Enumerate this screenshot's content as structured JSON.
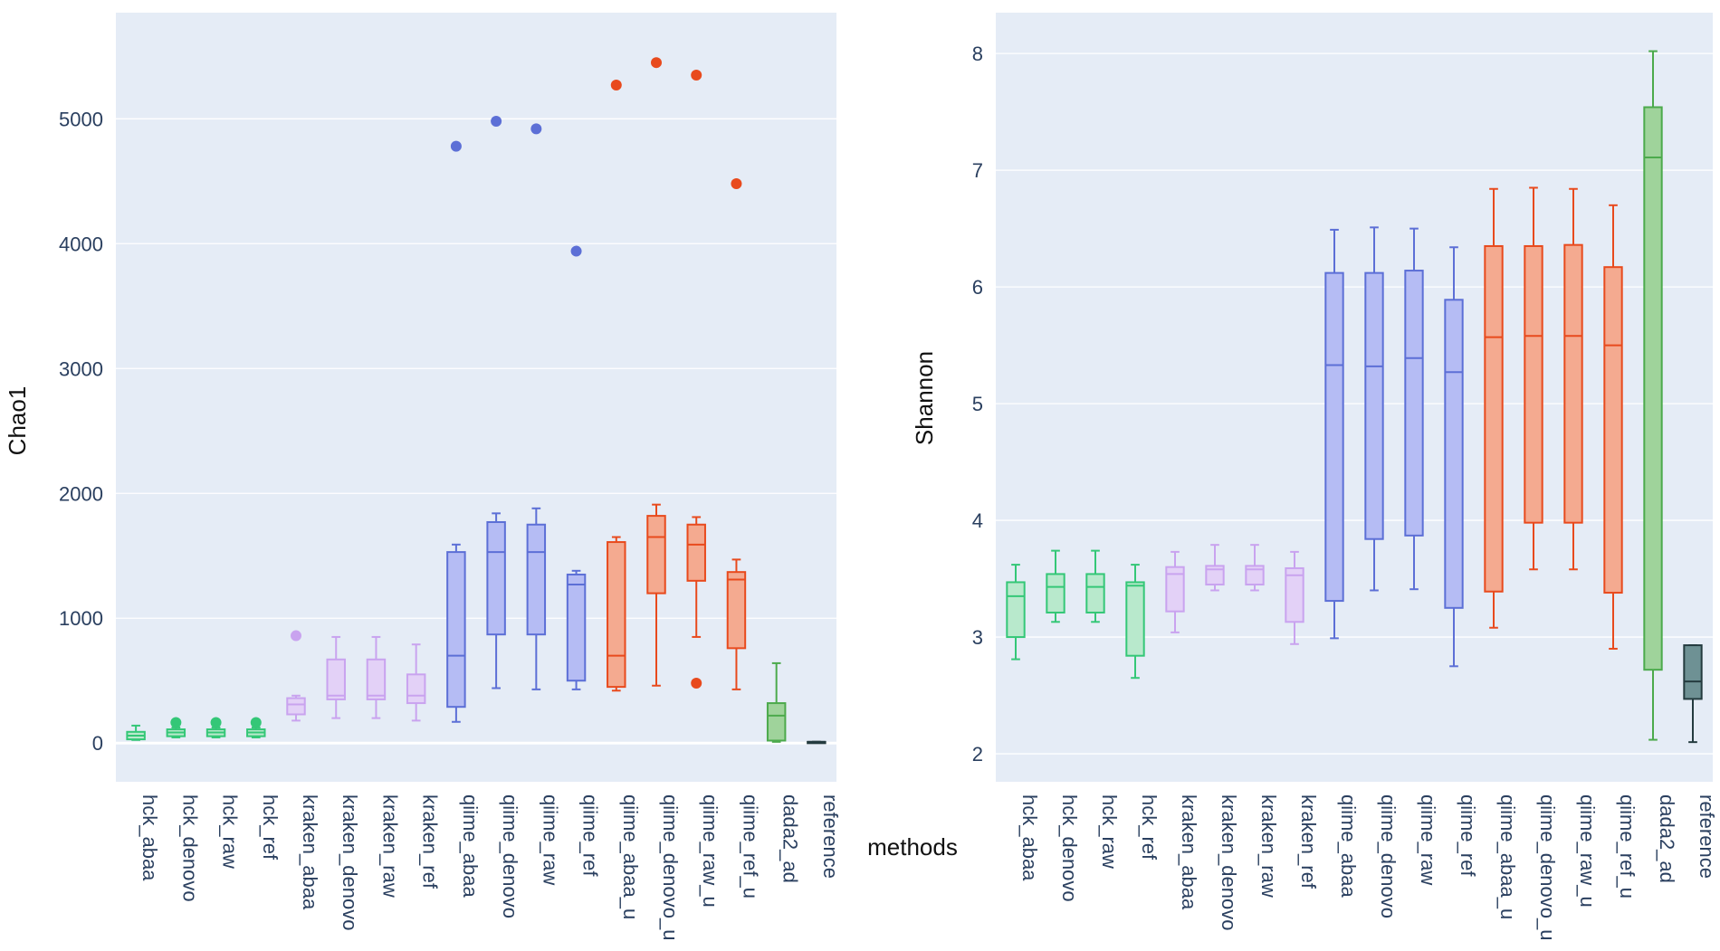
{
  "chart_data": [
    {
      "type": "box",
      "ylabel": "Chao1",
      "ylim": [
        -310,
        5850
      ],
      "yticks": [
        0,
        1000,
        2000,
        3000,
        4000,
        5000
      ],
      "categories": [
        "hck_abaa",
        "hck_denovo",
        "hck_raw",
        "hck_ref",
        "kraken_abaa",
        "kraken_denovo",
        "kraken_raw",
        "kraken_ref",
        "qiime_abaa",
        "qiime_denovo",
        "qiime_raw",
        "qiime_ref",
        "qiime_abaa_u",
        "qiime_denovo_u",
        "qiime_raw_u",
        "qiime_ref_u",
        "dada2_ad",
        "reference"
      ],
      "series": [
        {
          "name": "hck_abaa",
          "group": "hck",
          "min": 25,
          "q1": 30,
          "median": 60,
          "q3": 90,
          "max": 140,
          "outliers": []
        },
        {
          "name": "hck_denovo",
          "group": "hck",
          "min": 45,
          "q1": 55,
          "median": 85,
          "q3": 110,
          "max": 125,
          "outliers": [
            165
          ]
        },
        {
          "name": "hck_raw",
          "group": "hck",
          "min": 45,
          "q1": 55,
          "median": 85,
          "q3": 110,
          "max": 125,
          "outliers": [
            165
          ]
        },
        {
          "name": "hck_ref",
          "group": "hck",
          "min": 45,
          "q1": 55,
          "median": 85,
          "q3": 110,
          "max": 125,
          "outliers": [
            165
          ]
        },
        {
          "name": "kraken_abaa",
          "group": "kraken",
          "min": 180,
          "q1": 230,
          "median": 310,
          "q3": 360,
          "max": 380,
          "outliers": [
            860
          ]
        },
        {
          "name": "kraken_denovo",
          "group": "kraken",
          "min": 200,
          "q1": 350,
          "median": 380,
          "q3": 670,
          "max": 850,
          "outliers": []
        },
        {
          "name": "kraken_raw",
          "group": "kraken",
          "min": 200,
          "q1": 350,
          "median": 380,
          "q3": 670,
          "max": 850,
          "outliers": []
        },
        {
          "name": "kraken_ref",
          "group": "kraken",
          "min": 180,
          "q1": 320,
          "median": 380,
          "q3": 550,
          "max": 790,
          "outliers": []
        },
        {
          "name": "qiime_abaa",
          "group": "qiime",
          "min": 170,
          "q1": 290,
          "median": 700,
          "q3": 1530,
          "max": 1590,
          "outliers": [
            4780
          ]
        },
        {
          "name": "qiime_denovo",
          "group": "qiime",
          "min": 440,
          "q1": 870,
          "median": 1530,
          "q3": 1770,
          "max": 1840,
          "outliers": [
            4980
          ]
        },
        {
          "name": "qiime_raw",
          "group": "qiime",
          "min": 430,
          "q1": 870,
          "median": 1530,
          "q3": 1750,
          "max": 1880,
          "outliers": [
            4920
          ]
        },
        {
          "name": "qiime_ref",
          "group": "qiime",
          "min": 430,
          "q1": 500,
          "median": 1270,
          "q3": 1350,
          "max": 1380,
          "outliers": [
            3940
          ]
        },
        {
          "name": "qiime_abaa_u",
          "group": "qiime_u",
          "min": 420,
          "q1": 450,
          "median": 700,
          "q3": 1610,
          "max": 1650,
          "outliers": [
            5270
          ]
        },
        {
          "name": "qiime_denovo_u",
          "group": "qiime_u",
          "min": 460,
          "q1": 1200,
          "median": 1650,
          "q3": 1820,
          "max": 1910,
          "outliers": [
            5450
          ]
        },
        {
          "name": "qiime_raw_u",
          "group": "qiime_u",
          "min": 850,
          "q1": 1300,
          "median": 1590,
          "q3": 1750,
          "max": 1810,
          "outliers": [
            480,
            5350
          ]
        },
        {
          "name": "qiime_ref_u",
          "group": "qiime_u",
          "min": 430,
          "q1": 760,
          "median": 1310,
          "q3": 1370,
          "max": 1470,
          "outliers": [
            4480
          ]
        },
        {
          "name": "dada2_ad",
          "group": "dada2",
          "min": 10,
          "q1": 20,
          "median": 220,
          "q3": 320,
          "max": 640,
          "outliers": []
        },
        {
          "name": "reference",
          "group": "reference",
          "min": 10,
          "q1": 10,
          "median": 10,
          "q3": 10,
          "max": 10,
          "outliers": []
        }
      ]
    },
    {
      "type": "box",
      "ylabel": "Shannon",
      "ylim": [
        1.76,
        8.35
      ],
      "yticks": [
        2,
        3,
        4,
        5,
        6,
        7,
        8
      ],
      "categories": [
        "hck_abaa",
        "hck_denovo",
        "hck_raw",
        "hck_ref",
        "kraken_abaa",
        "kraken_denovo",
        "kraken_raw",
        "kraken_ref",
        "qiime_abaa",
        "qiime_denovo",
        "qiime_raw",
        "qiime_ref",
        "qiime_abaa_u",
        "qiime_denovo_u",
        "qiime_raw_u",
        "qiime_ref_u",
        "dada2_ad",
        "reference"
      ],
      "series": [
        {
          "name": "hck_abaa",
          "group": "hck",
          "min": 2.81,
          "q1": 3.0,
          "median": 3.35,
          "q3": 3.47,
          "max": 3.62,
          "outliers": []
        },
        {
          "name": "hck_denovo",
          "group": "hck",
          "min": 3.13,
          "q1": 3.21,
          "median": 3.43,
          "q3": 3.54,
          "max": 3.74,
          "outliers": []
        },
        {
          "name": "hck_raw",
          "group": "hck",
          "min": 3.13,
          "q1": 3.21,
          "median": 3.43,
          "q3": 3.54,
          "max": 3.74,
          "outliers": []
        },
        {
          "name": "hck_ref",
          "group": "hck",
          "min": 2.65,
          "q1": 2.84,
          "median": 3.44,
          "q3": 3.47,
          "max": 3.62,
          "outliers": []
        },
        {
          "name": "kraken_abaa",
          "group": "kraken",
          "min": 3.04,
          "q1": 3.22,
          "median": 3.54,
          "q3": 3.6,
          "max": 3.73,
          "outliers": []
        },
        {
          "name": "kraken_denovo",
          "group": "kraken",
          "min": 3.4,
          "q1": 3.45,
          "median": 3.58,
          "q3": 3.61,
          "max": 3.79,
          "outliers": []
        },
        {
          "name": "kraken_raw",
          "group": "kraken",
          "min": 3.4,
          "q1": 3.45,
          "median": 3.58,
          "q3": 3.61,
          "max": 3.79,
          "outliers": []
        },
        {
          "name": "kraken_ref",
          "group": "kraken",
          "min": 2.94,
          "q1": 3.13,
          "median": 3.53,
          "q3": 3.59,
          "max": 3.73,
          "outliers": []
        },
        {
          "name": "qiime_abaa",
          "group": "qiime",
          "min": 2.99,
          "q1": 3.31,
          "median": 5.33,
          "q3": 6.12,
          "max": 6.49,
          "outliers": []
        },
        {
          "name": "qiime_denovo",
          "group": "qiime",
          "min": 3.4,
          "q1": 3.84,
          "median": 5.32,
          "q3": 6.12,
          "max": 6.51,
          "outliers": []
        },
        {
          "name": "qiime_raw",
          "group": "qiime",
          "min": 3.41,
          "q1": 3.87,
          "median": 5.39,
          "q3": 6.14,
          "max": 6.5,
          "outliers": []
        },
        {
          "name": "qiime_ref",
          "group": "qiime",
          "min": 2.75,
          "q1": 3.25,
          "median": 5.27,
          "q3": 5.89,
          "max": 6.34,
          "outliers": []
        },
        {
          "name": "qiime_abaa_u",
          "group": "qiime_u",
          "min": 3.08,
          "q1": 3.39,
          "median": 5.57,
          "q3": 6.35,
          "max": 6.84,
          "outliers": []
        },
        {
          "name": "qiime_denovo_u",
          "group": "qiime_u",
          "min": 3.58,
          "q1": 3.98,
          "median": 5.58,
          "q3": 6.35,
          "max": 6.85,
          "outliers": []
        },
        {
          "name": "qiime_raw_u",
          "group": "qiime_u",
          "min": 3.58,
          "q1": 3.98,
          "median": 5.58,
          "q3": 6.36,
          "max": 6.84,
          "outliers": []
        },
        {
          "name": "qiime_ref_u",
          "group": "qiime_u",
          "min": 2.9,
          "q1": 3.38,
          "median": 5.5,
          "q3": 6.17,
          "max": 6.7,
          "outliers": []
        },
        {
          "name": "dada2_ad",
          "group": "dada2",
          "min": 2.12,
          "q1": 2.72,
          "median": 7.11,
          "q3": 7.54,
          "max": 8.02,
          "outliers": []
        },
        {
          "name": "reference",
          "group": "reference",
          "min": 2.1,
          "q1": 2.47,
          "median": 2.62,
          "q3": 2.93,
          "max": 2.93,
          "outliers": []
        }
      ]
    }
  ],
  "xlabel": "methods",
  "colors": {
    "hck": {
      "line": "#34c777",
      "fill": "#b8e9cc"
    },
    "kraken": {
      "line": "#c9a3ef",
      "fill": "#e3d1f7"
    },
    "qiime": {
      "line": "#5c6fd6",
      "fill": "#b5bcf4"
    },
    "qiime_u": {
      "line": "#e84a1d",
      "fill": "#f4aa90"
    },
    "dada2": {
      "line": "#4caa4c",
      "fill": "#9fd39b"
    },
    "reference": {
      "line": "#243b3f",
      "fill": "#6e9194"
    },
    "plot_bg": "#e5ecf6",
    "grid": "#ffffff",
    "zeroline": "#ffffff"
  }
}
